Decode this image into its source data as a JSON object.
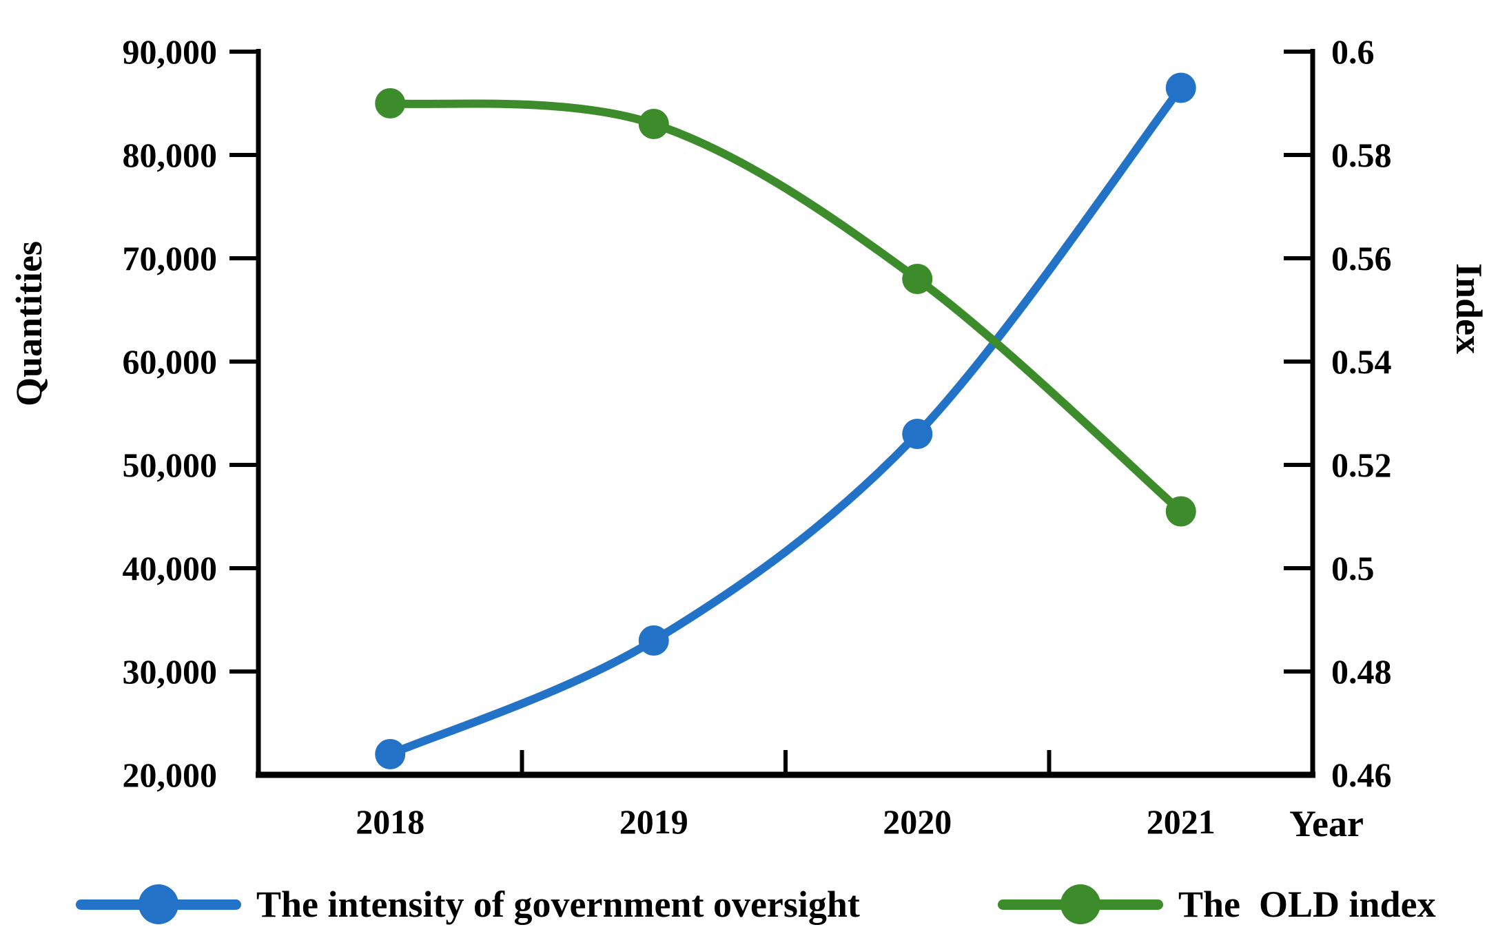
{
  "figure": {
    "background": "#ffffff",
    "axis_color": "#000000"
  },
  "chart_data": {
    "type": "line",
    "smooth": true,
    "grid": false,
    "legend_position": "bottom",
    "categories": [
      "2018",
      "2019",
      "2020",
      "2021"
    ],
    "xlabel": "Year",
    "ylabel_left": "Quantities",
    "ylabel_right": "Index",
    "left_axis": {
      "min": 20000,
      "max": 90000,
      "step": 10000,
      "tick_labels": [
        "20,000",
        "30,000",
        "40,000",
        "50,000",
        "60,000",
        "70,000",
        "80,000",
        "90,000"
      ]
    },
    "right_axis": {
      "min": 0.46,
      "max": 0.6,
      "step": 0.02,
      "tick_labels": [
        "0.46",
        "0.48",
        "0.5",
        "0.52",
        "0.54",
        "0.56",
        "0.58",
        "0.6"
      ]
    },
    "series": [
      {
        "name": "The intensity of government oversight",
        "axis": "left",
        "color": "#2273C8",
        "values": [
          22000,
          33000,
          53000,
          86500
        ]
      },
      {
        "name": "The  OLD index",
        "axis": "right",
        "color": "#3C8C2B",
        "values": [
          0.59,
          0.586,
          0.556,
          0.511
        ]
      }
    ]
  }
}
